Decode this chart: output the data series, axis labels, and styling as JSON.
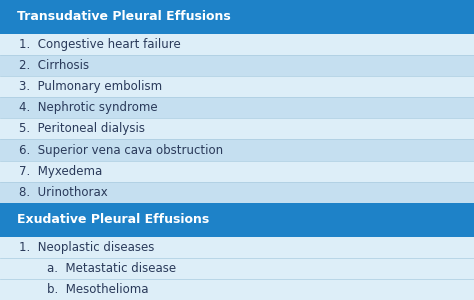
{
  "header1": "Transudative Pleural Effusions",
  "header2": "Exudative Pleural Effusions",
  "header_bg": "#1e82c8",
  "header_text_color": "#ffffff",
  "row_bg_light": "#ddeef8",
  "row_bg_dark": "#c5dff0",
  "fig_bg": "#ddeef8",
  "text_color": "#2a3a5a",
  "divider_color": "#aacce0",
  "transudative_items": [
    {
      "text": "1.  Congestive heart failure",
      "indent": 0.04
    },
    {
      "text": "2.  Cirrhosis",
      "indent": 0.04
    },
    {
      "text": "3.  Pulmonary embolism",
      "indent": 0.04
    },
    {
      "text": "4.  Nephrotic syndrome",
      "indent": 0.04
    },
    {
      "text": "5.  Peritoneal dialysis",
      "indent": 0.04
    },
    {
      "text": "6.  Superior vena cava obstruction",
      "indent": 0.04
    },
    {
      "text": "7.  Myxedema",
      "indent": 0.04
    },
    {
      "text": "8.  Urinothorax",
      "indent": 0.04
    }
  ],
  "exudative_items": [
    {
      "text": "1.  Neoplastic diseases",
      "indent": 0.04
    },
    {
      "text": "a.  Metastatic disease",
      "indent": 0.1
    },
    {
      "text": "b.  Mesothelioma",
      "indent": 0.1
    }
  ],
  "header_fs": 9.0,
  "item_fs": 8.5,
  "fig_width": 4.74,
  "fig_height": 3.0,
  "dpi": 100
}
